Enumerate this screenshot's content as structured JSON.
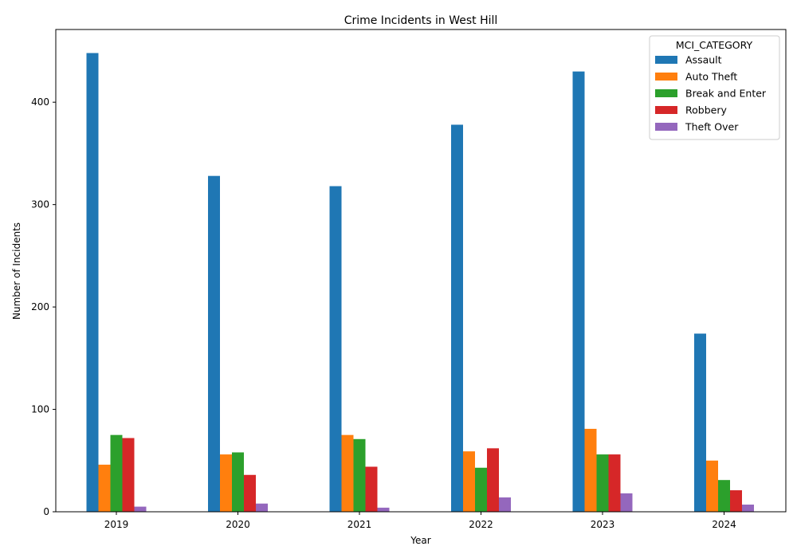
{
  "chart_data": {
    "type": "bar",
    "title": "Crime Incidents in West Hill",
    "xlabel": "Year",
    "ylabel": "Number of Incidents",
    "categories": [
      "2019",
      "2020",
      "2021",
      "2022",
      "2023",
      "2024"
    ],
    "ylim": [
      0,
      471
    ],
    "yticks": [
      0,
      100,
      200,
      300,
      400
    ],
    "legend_title": "MCI_CATEGORY",
    "legend_position": "top-right",
    "grid": false,
    "series": [
      {
        "name": "Assault",
        "color": "#1f77b4",
        "values": [
          448,
          328,
          318,
          378,
          430,
          174
        ]
      },
      {
        "name": "Auto Theft",
        "color": "#ff7f0e",
        "values": [
          46,
          56,
          75,
          59,
          81,
          50
        ]
      },
      {
        "name": "Break and Enter",
        "color": "#2ca02c",
        "values": [
          75,
          58,
          71,
          43,
          56,
          31
        ]
      },
      {
        "name": "Robbery",
        "color": "#d62728",
        "values": [
          72,
          36,
          44,
          62,
          56,
          21
        ]
      },
      {
        "name": "Theft Over",
        "color": "#9467bd",
        "values": [
          5,
          8,
          4,
          14,
          18,
          7
        ]
      }
    ]
  }
}
